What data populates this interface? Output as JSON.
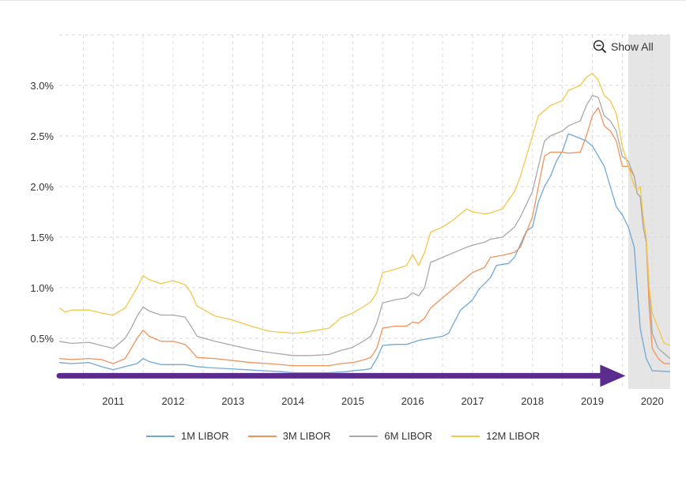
{
  "chart_data": {
    "type": "line",
    "title": "",
    "xlabel": "",
    "ylabel": "",
    "xlim": [
      2010.1,
      2020.3
    ],
    "ylim": [
      0,
      3.5
    ],
    "grid": true,
    "legend_position": "bottom",
    "x_ticks": [
      {
        "value": 2011,
        "label": "2011"
      },
      {
        "value": 2012,
        "label": "2012"
      },
      {
        "value": 2013,
        "label": "2013"
      },
      {
        "value": 2014,
        "label": "2014"
      },
      {
        "value": 2015,
        "label": "2015"
      },
      {
        "value": 2016,
        "label": "2016"
      },
      {
        "value": 2017,
        "label": "2017"
      },
      {
        "value": 2018,
        "label": "2018"
      },
      {
        "value": 2019,
        "label": "2019"
      },
      {
        "value": 2020,
        "label": "2020"
      }
    ],
    "y_ticks": [
      {
        "value": 0.5,
        "label": "0.5%"
      },
      {
        "value": 1.0,
        "label": "1.0%"
      },
      {
        "value": 1.5,
        "label": "1.5%"
      },
      {
        "value": 2.0,
        "label": "2.0%"
      },
      {
        "value": 2.5,
        "label": "2.5%"
      },
      {
        "value": 3.0,
        "label": "3.0%"
      }
    ],
    "shaded_region": {
      "from": 2019.6,
      "to": 2020.3,
      "color": "#e5e5e5"
    },
    "arrow": {
      "from": [
        2010.1,
        0.13
      ],
      "to": [
        2019.5,
        0.13
      ],
      "color": "#5b2b8e"
    },
    "series": [
      {
        "name": "1M LIBOR",
        "color": "#6fa8d6",
        "points": [
          [
            2010.1,
            0.26
          ],
          [
            2010.3,
            0.25
          ],
          [
            2010.6,
            0.26
          ],
          [
            2010.8,
            0.22
          ],
          [
            2011.0,
            0.19
          ],
          [
            2011.2,
            0.22
          ],
          [
            2011.4,
            0.25
          ],
          [
            2011.5,
            0.3
          ],
          [
            2011.6,
            0.27
          ],
          [
            2011.8,
            0.24
          ],
          [
            2012.0,
            0.24
          ],
          [
            2012.2,
            0.24
          ],
          [
            2012.4,
            0.22
          ],
          [
            2012.6,
            0.21
          ],
          [
            2012.9,
            0.2
          ],
          [
            2013.2,
            0.19
          ],
          [
            2013.5,
            0.18
          ],
          [
            2013.8,
            0.17
          ],
          [
            2014.0,
            0.16
          ],
          [
            2014.3,
            0.16
          ],
          [
            2014.6,
            0.16
          ],
          [
            2014.9,
            0.17
          ],
          [
            2015.0,
            0.18
          ],
          [
            2015.2,
            0.19
          ],
          [
            2015.3,
            0.2
          ],
          [
            2015.4,
            0.3
          ],
          [
            2015.5,
            0.43
          ],
          [
            2015.7,
            0.44
          ],
          [
            2015.9,
            0.44
          ],
          [
            2016.1,
            0.48
          ],
          [
            2016.3,
            0.5
          ],
          [
            2016.5,
            0.52
          ],
          [
            2016.6,
            0.55
          ],
          [
            2016.8,
            0.78
          ],
          [
            2017.0,
            0.88
          ],
          [
            2017.1,
            0.98
          ],
          [
            2017.3,
            1.1
          ],
          [
            2017.4,
            1.22
          ],
          [
            2017.6,
            1.24
          ],
          [
            2017.7,
            1.3
          ],
          [
            2017.9,
            1.56
          ],
          [
            2018.0,
            1.6
          ],
          [
            2018.1,
            1.85
          ],
          [
            2018.2,
            2.0
          ],
          [
            2018.3,
            2.1
          ],
          [
            2018.4,
            2.25
          ],
          [
            2018.5,
            2.35
          ],
          [
            2018.6,
            2.52
          ],
          [
            2018.7,
            2.5
          ],
          [
            2018.9,
            2.45
          ],
          [
            2019.0,
            2.4
          ],
          [
            2019.1,
            2.3
          ],
          [
            2019.2,
            2.2
          ],
          [
            2019.3,
            2.0
          ],
          [
            2019.4,
            1.8
          ],
          [
            2019.5,
            1.72
          ],
          [
            2019.6,
            1.6
          ],
          [
            2019.7,
            1.4
          ],
          [
            2019.75,
            1.0
          ],
          [
            2019.8,
            0.6
          ],
          [
            2019.9,
            0.3
          ],
          [
            2020.0,
            0.18
          ],
          [
            2020.3,
            0.17
          ]
        ]
      },
      {
        "name": "3M LIBOR",
        "color": "#f0935a",
        "points": [
          [
            2010.1,
            0.3
          ],
          [
            2010.3,
            0.29
          ],
          [
            2010.6,
            0.3
          ],
          [
            2010.8,
            0.29
          ],
          [
            2011.0,
            0.25
          ],
          [
            2011.2,
            0.3
          ],
          [
            2011.3,
            0.4
          ],
          [
            2011.4,
            0.5
          ],
          [
            2011.5,
            0.58
          ],
          [
            2011.6,
            0.52
          ],
          [
            2011.8,
            0.47
          ],
          [
            2012.0,
            0.47
          ],
          [
            2012.2,
            0.44
          ],
          [
            2012.3,
            0.38
          ],
          [
            2012.4,
            0.31
          ],
          [
            2012.7,
            0.3
          ],
          [
            2013.0,
            0.28
          ],
          [
            2013.3,
            0.26
          ],
          [
            2013.6,
            0.25
          ],
          [
            2014.0,
            0.23
          ],
          [
            2014.3,
            0.23
          ],
          [
            2014.6,
            0.23
          ],
          [
            2014.8,
            0.25
          ],
          [
            2015.0,
            0.26
          ],
          [
            2015.2,
            0.29
          ],
          [
            2015.3,
            0.31
          ],
          [
            2015.4,
            0.4
          ],
          [
            2015.5,
            0.6
          ],
          [
            2015.7,
            0.62
          ],
          [
            2015.9,
            0.62
          ],
          [
            2016.0,
            0.66
          ],
          [
            2016.1,
            0.65
          ],
          [
            2016.2,
            0.7
          ],
          [
            2016.3,
            0.8
          ],
          [
            2016.5,
            0.9
          ],
          [
            2016.7,
            1.0
          ],
          [
            2016.9,
            1.1
          ],
          [
            2017.0,
            1.15
          ],
          [
            2017.2,
            1.2
          ],
          [
            2017.3,
            1.3
          ],
          [
            2017.5,
            1.32
          ],
          [
            2017.7,
            1.35
          ],
          [
            2017.8,
            1.4
          ],
          [
            2018.0,
            1.7
          ],
          [
            2018.1,
            2.0
          ],
          [
            2018.2,
            2.3
          ],
          [
            2018.3,
            2.34
          ],
          [
            2018.5,
            2.34
          ],
          [
            2018.6,
            2.33
          ],
          [
            2018.8,
            2.34
          ],
          [
            2018.9,
            2.5
          ],
          [
            2019.0,
            2.7
          ],
          [
            2019.1,
            2.78
          ],
          [
            2019.2,
            2.6
          ],
          [
            2019.3,
            2.55
          ],
          [
            2019.4,
            2.45
          ],
          [
            2019.5,
            2.2
          ],
          [
            2019.6,
            2.2
          ],
          [
            2019.7,
            2.1
          ],
          [
            2019.75,
            1.93
          ],
          [
            2019.8,
            1.9
          ],
          [
            2019.85,
            1.6
          ],
          [
            2019.9,
            1.45
          ],
          [
            2019.95,
            0.8
          ],
          [
            2020.0,
            0.4
          ],
          [
            2020.1,
            0.3
          ],
          [
            2020.2,
            0.25
          ],
          [
            2020.3,
            0.25
          ]
        ]
      },
      {
        "name": "6M LIBOR",
        "color": "#a8a8a8",
        "points": [
          [
            2010.1,
            0.47
          ],
          [
            2010.3,
            0.45
          ],
          [
            2010.6,
            0.46
          ],
          [
            2010.8,
            0.43
          ],
          [
            2011.0,
            0.4
          ],
          [
            2011.2,
            0.5
          ],
          [
            2011.3,
            0.6
          ],
          [
            2011.4,
            0.72
          ],
          [
            2011.5,
            0.81
          ],
          [
            2011.6,
            0.77
          ],
          [
            2011.8,
            0.73
          ],
          [
            2012.0,
            0.73
          ],
          [
            2012.2,
            0.71
          ],
          [
            2012.3,
            0.62
          ],
          [
            2012.4,
            0.52
          ],
          [
            2012.7,
            0.47
          ],
          [
            2013.0,
            0.43
          ],
          [
            2013.3,
            0.39
          ],
          [
            2013.6,
            0.36
          ],
          [
            2014.0,
            0.33
          ],
          [
            2014.3,
            0.33
          ],
          [
            2014.6,
            0.34
          ],
          [
            2014.8,
            0.38
          ],
          [
            2015.0,
            0.41
          ],
          [
            2015.2,
            0.48
          ],
          [
            2015.3,
            0.52
          ],
          [
            2015.4,
            0.65
          ],
          [
            2015.5,
            0.85
          ],
          [
            2015.7,
            0.88
          ],
          [
            2015.9,
            0.9
          ],
          [
            2016.0,
            0.95
          ],
          [
            2016.1,
            0.92
          ],
          [
            2016.2,
            1.0
          ],
          [
            2016.3,
            1.25
          ],
          [
            2016.5,
            1.3
          ],
          [
            2016.7,
            1.35
          ],
          [
            2016.9,
            1.4
          ],
          [
            2017.0,
            1.42
          ],
          [
            2017.2,
            1.45
          ],
          [
            2017.3,
            1.48
          ],
          [
            2017.5,
            1.5
          ],
          [
            2017.7,
            1.6
          ],
          [
            2017.8,
            1.7
          ],
          [
            2018.0,
            1.95
          ],
          [
            2018.1,
            2.2
          ],
          [
            2018.2,
            2.45
          ],
          [
            2018.3,
            2.5
          ],
          [
            2018.5,
            2.55
          ],
          [
            2018.6,
            2.6
          ],
          [
            2018.8,
            2.65
          ],
          [
            2018.9,
            2.8
          ],
          [
            2019.0,
            2.9
          ],
          [
            2019.1,
            2.88
          ],
          [
            2019.2,
            2.7
          ],
          [
            2019.3,
            2.65
          ],
          [
            2019.4,
            2.55
          ],
          [
            2019.5,
            2.3
          ],
          [
            2019.6,
            2.25
          ],
          [
            2019.7,
            2.1
          ],
          [
            2019.75,
            1.93
          ],
          [
            2019.8,
            1.9
          ],
          [
            2019.85,
            1.6
          ],
          [
            2019.9,
            1.45
          ],
          [
            2019.95,
            1.0
          ],
          [
            2020.0,
            0.55
          ],
          [
            2020.1,
            0.4
          ],
          [
            2020.2,
            0.35
          ],
          [
            2020.3,
            0.3
          ]
        ]
      },
      {
        "name": "12M LIBOR",
        "color": "#f2c84b",
        "points": [
          [
            2010.1,
            0.8
          ],
          [
            2010.2,
            0.76
          ],
          [
            2010.3,
            0.78
          ],
          [
            2010.6,
            0.78
          ],
          [
            2010.8,
            0.75
          ],
          [
            2011.0,
            0.73
          ],
          [
            2011.2,
            0.8
          ],
          [
            2011.3,
            0.9
          ],
          [
            2011.4,
            1.0
          ],
          [
            2011.5,
            1.12
          ],
          [
            2011.6,
            1.08
          ],
          [
            2011.8,
            1.04
          ],
          [
            2012.0,
            1.07
          ],
          [
            2012.2,
            1.03
          ],
          [
            2012.3,
            0.95
          ],
          [
            2012.4,
            0.82
          ],
          [
            2012.7,
            0.72
          ],
          [
            2013.0,
            0.68
          ],
          [
            2013.3,
            0.62
          ],
          [
            2013.6,
            0.57
          ],
          [
            2014.0,
            0.55
          ],
          [
            2014.2,
            0.56
          ],
          [
            2014.4,
            0.58
          ],
          [
            2014.6,
            0.6
          ],
          [
            2014.8,
            0.7
          ],
          [
            2015.0,
            0.75
          ],
          [
            2015.2,
            0.82
          ],
          [
            2015.3,
            0.86
          ],
          [
            2015.4,
            0.95
          ],
          [
            2015.5,
            1.15
          ],
          [
            2015.7,
            1.18
          ],
          [
            2015.9,
            1.22
          ],
          [
            2016.0,
            1.33
          ],
          [
            2016.1,
            1.22
          ],
          [
            2016.2,
            1.35
          ],
          [
            2016.3,
            1.55
          ],
          [
            2016.5,
            1.6
          ],
          [
            2016.7,
            1.68
          ],
          [
            2016.9,
            1.78
          ],
          [
            2017.0,
            1.75
          ],
          [
            2017.2,
            1.73
          ],
          [
            2017.3,
            1.74
          ],
          [
            2017.5,
            1.78
          ],
          [
            2017.7,
            1.95
          ],
          [
            2017.8,
            2.1
          ],
          [
            2018.0,
            2.5
          ],
          [
            2018.1,
            2.7
          ],
          [
            2018.2,
            2.75
          ],
          [
            2018.3,
            2.8
          ],
          [
            2018.5,
            2.85
          ],
          [
            2018.6,
            2.95
          ],
          [
            2018.8,
            3.0
          ],
          [
            2018.9,
            3.08
          ],
          [
            2019.0,
            3.12
          ],
          [
            2019.1,
            3.05
          ],
          [
            2019.2,
            2.9
          ],
          [
            2019.3,
            2.85
          ],
          [
            2019.4,
            2.72
          ],
          [
            2019.5,
            2.4
          ],
          [
            2019.6,
            2.2
          ],
          [
            2019.7,
            2.0
          ],
          [
            2019.75,
            1.97
          ],
          [
            2019.8,
            2.0
          ],
          [
            2019.85,
            1.7
          ],
          [
            2019.9,
            1.5
          ],
          [
            2019.95,
            1.0
          ],
          [
            2020.0,
            0.75
          ],
          [
            2020.1,
            0.6
          ],
          [
            2020.2,
            0.45
          ],
          [
            2020.3,
            0.43
          ]
        ]
      }
    ]
  },
  "toolbar": {
    "show_all_label": "Show All",
    "zoom_icon": "zoom-out-icon"
  }
}
